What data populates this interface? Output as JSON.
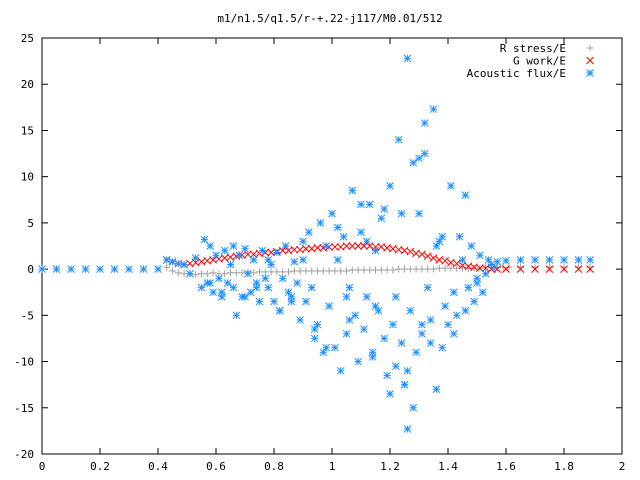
{
  "chart_data": {
    "type": "scatter",
    "title": "m1/n1.5/q1.5/r-+.22-j117/M0.01/512",
    "xlabel": "",
    "ylabel": "",
    "xlim": [
      0,
      2
    ],
    "ylim": [
      -20,
      25
    ],
    "xticks": [
      0,
      0.2,
      0.4,
      0.6,
      0.8,
      1,
      1.2,
      1.4,
      1.6,
      1.8,
      2
    ],
    "yticks": [
      -20,
      -15,
      -10,
      -5,
      0,
      5,
      10,
      15,
      20,
      25
    ],
    "xtick_labels": [
      "0",
      "0.2",
      "0.4",
      "0.6",
      "0.8",
      "1",
      "1.2",
      "1.4",
      "1.6",
      "1.8",
      "2"
    ],
    "ytick_labels": [
      "-20",
      "-15",
      "-10",
      "-5",
      "0",
      "5",
      "10",
      "15",
      "20",
      "25"
    ],
    "grid": false,
    "legend_position": "top-right",
    "series": [
      {
        "name": "R stress/E",
        "marker": "plus",
        "color": "#a0a0a0",
        "x": [
          0.43,
          0.45,
          0.47,
          0.49,
          0.51,
          0.53,
          0.55,
          0.57,
          0.59,
          0.61,
          0.63,
          0.65,
          0.67,
          0.69,
          0.71,
          0.73,
          0.75,
          0.77,
          0.79,
          0.81,
          0.83,
          0.85,
          0.87,
          0.89,
          0.91,
          0.93,
          0.95,
          0.97,
          0.99,
          1.01,
          1.03,
          1.05,
          1.07,
          1.09,
          1.11,
          1.13,
          1.15,
          1.17,
          1.19,
          1.21,
          1.23,
          1.25,
          1.27,
          1.29,
          1.31,
          1.33,
          1.35,
          1.37,
          1.39,
          1.41,
          1.43,
          1.45,
          1.47,
          1.49,
          1.51,
          1.53,
          1.55,
          1.57,
          1.59,
          1.61,
          1.65,
          1.7,
          1.75,
          1.8,
          1.85,
          1.89
        ],
        "y": [
          0.2,
          -0.2,
          -0.4,
          -0.5,
          -0.5,
          -0.6,
          -0.5,
          -0.5,
          -0.4,
          -0.5,
          -0.5,
          -0.4,
          -0.4,
          -0.4,
          -0.3,
          -0.4,
          -0.3,
          -0.3,
          -0.3,
          -0.3,
          -0.3,
          -0.3,
          -0.2,
          -0.2,
          -0.2,
          -0.2,
          -0.2,
          -0.2,
          -0.2,
          -0.2,
          -0.2,
          -0.2,
          -0.1,
          -0.1,
          -0.1,
          -0.1,
          -0.1,
          -0.1,
          -0.1,
          -0.1,
          0,
          0,
          0,
          0,
          0,
          0,
          0,
          0.1,
          0.1,
          0.1,
          0.1,
          0.1,
          0.1,
          0.1,
          0.1,
          0.2,
          0.2,
          0.2,
          0.2,
          0.2,
          0.2,
          0.2,
          0.2,
          0.2,
          0.2,
          0.2
        ]
      },
      {
        "name": "G work/E",
        "marker": "cross",
        "color": "#ff0000",
        "x": [
          0.43,
          0.45,
          0.47,
          0.49,
          0.51,
          0.53,
          0.55,
          0.57,
          0.59,
          0.61,
          0.63,
          0.65,
          0.67,
          0.69,
          0.71,
          0.73,
          0.75,
          0.77,
          0.79,
          0.81,
          0.83,
          0.85,
          0.87,
          0.89,
          0.91,
          0.93,
          0.95,
          0.97,
          0.99,
          1.01,
          1.03,
          1.05,
          1.07,
          1.09,
          1.11,
          1.13,
          1.15,
          1.17,
          1.19,
          1.21,
          1.23,
          1.25,
          1.27,
          1.29,
          1.31,
          1.33,
          1.35,
          1.37,
          1.39,
          1.41,
          1.43,
          1.45,
          1.47,
          1.49,
          1.51,
          1.53,
          1.55,
          1.57,
          1.6,
          1.65,
          1.7,
          1.75,
          1.8,
          1.85,
          1.89
        ],
        "y": [
          1.0,
          0.8,
          0.6,
          0.5,
          0.6,
          0.7,
          0.8,
          0.9,
          1.0,
          1.1,
          1.2,
          1.3,
          1.4,
          1.5,
          1.6,
          1.6,
          1.7,
          1.8,
          1.8,
          1.9,
          2.0,
          2.0,
          2.1,
          2.1,
          2.2,
          2.2,
          2.3,
          2.3,
          2.4,
          2.4,
          2.4,
          2.5,
          2.5,
          2.5,
          2.5,
          2.5,
          2.4,
          2.4,
          2.3,
          2.2,
          2.1,
          2.0,
          1.9,
          1.7,
          1.6,
          1.4,
          1.2,
          1.0,
          0.9,
          0.7,
          0.6,
          0.4,
          0.3,
          0.2,
          0.1,
          0.1,
          0,
          0,
          0,
          0,
          0,
          0,
          0,
          0,
          0
        ]
      },
      {
        "name": "Acoustic flux/E",
        "marker": "star",
        "color": "#1e90ff",
        "x": [
          0,
          0.05,
          0.1,
          0.15,
          0.2,
          0.25,
          0.3,
          0.35,
          0.4,
          0.43,
          0.45,
          0.47,
          0.49,
          0.51,
          0.53,
          0.55,
          0.56,
          0.57,
          0.58,
          0.59,
          0.6,
          0.61,
          0.62,
          0.63,
          0.64,
          0.65,
          0.66,
          0.67,
          0.68,
          0.69,
          0.7,
          0.71,
          0.72,
          0.73,
          0.74,
          0.75,
          0.76,
          0.77,
          0.78,
          0.79,
          0.8,
          0.81,
          0.82,
          0.83,
          0.84,
          0.85,
          0.86,
          0.87,
          0.88,
          0.89,
          0.9,
          0.91,
          0.92,
          0.93,
          0.94,
          0.95,
          0.96,
          0.97,
          0.98,
          0.99,
          1.0,
          1.01,
          1.02,
          1.03,
          1.04,
          1.05,
          1.06,
          1.07,
          1.08,
          1.09,
          1.1,
          1.11,
          1.12,
          1.13,
          1.14,
          1.15,
          1.16,
          1.17,
          1.18,
          1.19,
          1.2,
          1.21,
          1.22,
          1.23,
          1.24,
          1.25,
          1.26,
          1.27,
          1.28,
          1.29,
          1.3,
          1.31,
          1.32,
          1.33,
          1.34,
          1.35,
          1.36,
          1.37,
          1.38,
          1.39,
          1.4,
          1.41,
          1.42,
          1.43,
          1.44,
          1.45,
          1.46,
          1.47,
          1.48,
          1.49,
          1.5,
          1.51,
          1.52,
          1.53,
          1.54,
          1.55,
          1.56,
          1.57,
          1.6,
          1.65,
          1.7,
          1.75,
          1.8,
          1.85,
          1.89,
          0.58,
          0.62,
          0.66,
          0.7,
          0.74,
          0.78,
          0.82,
          0.86,
          0.9,
          0.94,
          0.98,
          1.02,
          1.06,
          1.1,
          1.14,
          1.18,
          1.22,
          1.26,
          1.3,
          1.34,
          1.38,
          1.42,
          1.46,
          1.5,
          1.12,
          1.2,
          1.24,
          1.28,
          1.32,
          1.36,
          1.26,
          1.31,
          1.15,
          1.25,
          1.05
        ],
        "y": [
          0,
          0,
          0,
          0,
          0,
          0,
          0,
          0,
          0,
          1.0,
          0.8,
          0.6,
          0.5,
          -0.5,
          1.2,
          -2.0,
          3.2,
          -1.5,
          2.5,
          -2.5,
          1.5,
          -1.0,
          -3.0,
          2.0,
          -1.5,
          0.5,
          -2.0,
          -5.0,
          1.5,
          -3.0,
          2.2,
          -0.5,
          -2.5,
          1.0,
          -1.5,
          -3.5,
          2.0,
          -1.0,
          -2.0,
          0.5,
          -3.5,
          1.8,
          -4.5,
          -1.0,
          2.5,
          -2.5,
          -3.0,
          0.8,
          -1.5,
          -5.5,
          1.0,
          -3.5,
          4.0,
          -2.0,
          -7.5,
          -6.0,
          5.0,
          -9.0,
          2.5,
          -4.0,
          6.0,
          -8.5,
          1.0,
          -11.0,
          3.5,
          -7.0,
          -2.0,
          8.5,
          -5.0,
          -10.0,
          4.0,
          -6.5,
          -3.0,
          7.0,
          -9.0,
          2.0,
          -4.5,
          5.5,
          -7.5,
          -11.5,
          9.0,
          -6.0,
          -3.0,
          14.0,
          -8.0,
          -12.5,
          22.8,
          -4.5,
          11.5,
          -9.0,
          6.0,
          -7.0,
          15.8,
          -2.0,
          -5.5,
          17.3,
          -13.0,
          3.0,
          -8.5,
          -4.0,
          -6.0,
          9.0,
          -2.5,
          -5.0,
          3.5,
          1.0,
          -4.5,
          -2.0,
          2.5,
          -3.5,
          -1.0,
          1.5,
          -2.5,
          -0.5,
          1.0,
          0.5,
          0.2,
          0.8,
          0.9,
          1.0,
          1.0,
          1.0,
          1.0,
          1.0,
          1.0,
          -1.5,
          -2.5,
          2.5,
          -3.0,
          -2.0,
          1.0,
          -4.5,
          -3.5,
          3.0,
          -6.5,
          -8.5,
          4.5,
          -5.5,
          7.0,
          -9.5,
          6.5,
          -10.5,
          -17.3,
          12.0,
          -8.0,
          3.5,
          -7.0,
          8.0,
          -1.5,
          3.0,
          -13.5,
          6.0,
          -15.0,
          12.5,
          2.5,
          -11.0,
          -6.0,
          -4.0,
          -12.5,
          -3.0
        ]
      }
    ]
  }
}
